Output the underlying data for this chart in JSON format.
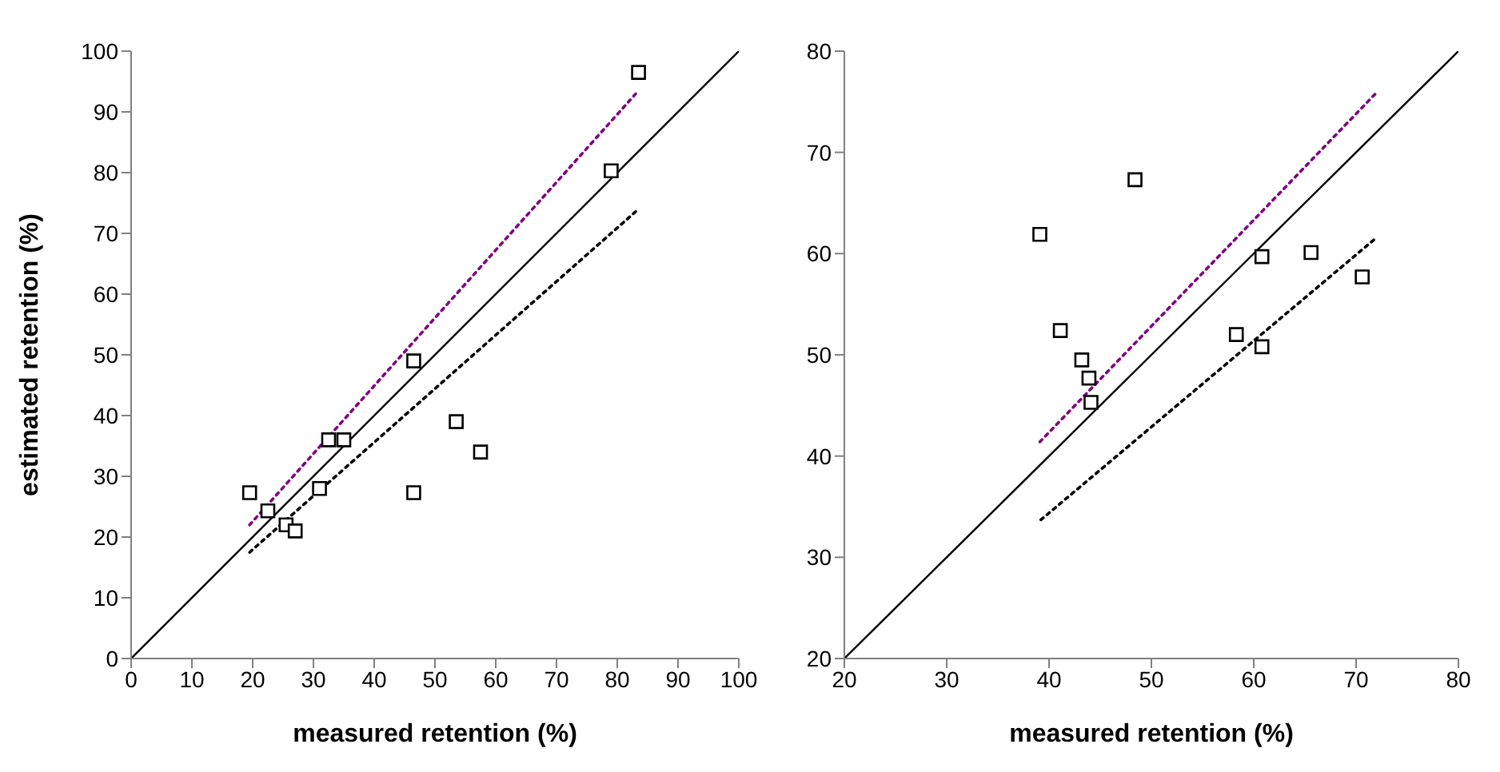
{
  "chart_data": [
    {
      "type": "scatter",
      "xlabel": "measured retention (%)",
      "ylabel": "estimated retention (%)",
      "xlim": [
        0,
        100
      ],
      "ylim": [
        0,
        100
      ],
      "xticks": [
        0,
        10,
        20,
        30,
        40,
        50,
        60,
        70,
        80,
        90,
        100
      ],
      "yticks": [
        0,
        10,
        20,
        30,
        40,
        50,
        60,
        70,
        80,
        90,
        100
      ],
      "grid": false,
      "legend": false,
      "marker": "square",
      "series": [
        {
          "color": "#000000",
          "x": [
            19.5,
            22.5,
            25.5,
            27,
            31,
            32.5,
            35,
            46.5,
            46.5,
            53.5,
            57.5,
            79,
            83.5
          ],
          "values": [
            27.3,
            24.3,
            22,
            21,
            28,
            36,
            36,
            49,
            27.3,
            39,
            34,
            80.3,
            96.5
          ]
        },
        {
          "type": "line",
          "color": "#000000",
          "line_style": "solid",
          "marker": "none",
          "x": [
            0,
            100
          ],
          "values": [
            0,
            100
          ]
        },
        {
          "type": "line",
          "color": "#800080",
          "line_style": "dotted",
          "marker": "none",
          "x": [
            19.5,
            83.5
          ],
          "values": [
            22,
            93.5
          ]
        },
        {
          "type": "line",
          "color": "#000000",
          "line_style": "dotted",
          "marker": "none",
          "x": [
            19.5,
            83.5
          ],
          "values": [
            17.5,
            74
          ]
        }
      ]
    },
    {
      "type": "scatter",
      "xlabel": "measured retention (%)",
      "xlim": [
        20,
        80
      ],
      "ylim": [
        20,
        80
      ],
      "xticks": [
        20,
        30,
        40,
        50,
        60,
        70,
        80
      ],
      "yticks": [
        20,
        30,
        40,
        50,
        60,
        70,
        80
      ],
      "grid": false,
      "legend": false,
      "marker": "square",
      "series": [
        {
          "color": "#000000",
          "x": [
            39.1,
            48.4,
            41.1,
            43.2,
            43.9,
            44.1,
            58.3,
            60.8,
            60.8,
            65.6,
            70.6
          ],
          "values": [
            61.9,
            67.3,
            52.4,
            49.5,
            47.7,
            45.3,
            52.0,
            59.7,
            50.8,
            60.1,
            57.7
          ]
        },
        {
          "type": "line",
          "color": "#000000",
          "line_style": "solid",
          "marker": "none",
          "x": [
            20,
            80
          ],
          "values": [
            20,
            80
          ]
        },
        {
          "type": "line",
          "color": "#800080",
          "line_style": "dotted",
          "marker": "none",
          "x": [
            39.1,
            71.9
          ],
          "values": [
            41.4,
            75.8
          ]
        },
        {
          "type": "line",
          "color": "#000000",
          "line_style": "dotted",
          "marker": "none",
          "x": [
            39.2,
            71.9
          ],
          "values": [
            33.7,
            61.5
          ]
        }
      ]
    }
  ]
}
